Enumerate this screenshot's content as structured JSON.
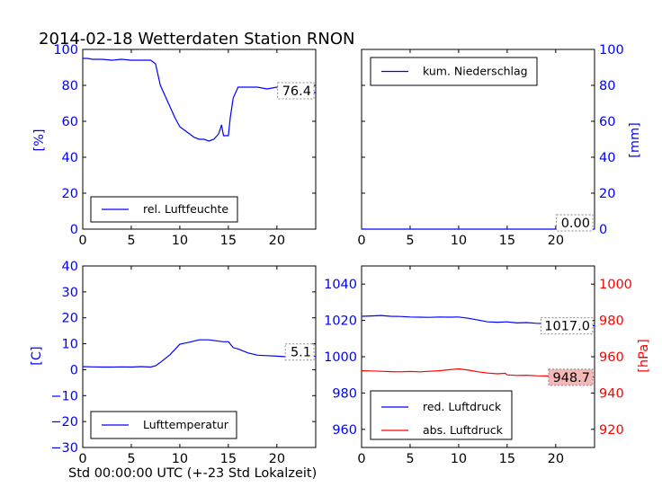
{
  "title": "2014-02-18 Wetterdaten Station RNON",
  "footer": "Std 00:00:00 UTC (+-23 Std Lokalzeit)",
  "colors": {
    "blue": "#0000ff",
    "red": "#ff0000",
    "box_red": "#f4b8b8",
    "axis": "#000000"
  },
  "chart_data": [
    {
      "type": "line",
      "panel": "top-left",
      "ylabel": "[%]",
      "xlim": [
        0,
        24
      ],
      "ylim": [
        0,
        100
      ],
      "xticks": [
        0,
        5,
        10,
        15,
        20
      ],
      "yticks": [
        0,
        20,
        40,
        60,
        80,
        100
      ],
      "legend": "lower-left",
      "series": [
        {
          "name": "rel. Luftfeuchte",
          "color": "#0000ff",
          "x": [
            0,
            0.5,
            1,
            2,
            3,
            4,
            5,
            6,
            7,
            7.5,
            8,
            8.5,
            9,
            9.5,
            10,
            10.5,
            11,
            11.5,
            12,
            12.5,
            13,
            13.5,
            14,
            14.3,
            14.5,
            15,
            15.2,
            15.5,
            16,
            17,
            18,
            19,
            20,
            21,
            22,
            23,
            24
          ],
          "y": [
            95,
            95,
            94.5,
            94.5,
            94,
            94.5,
            94,
            94,
            94,
            92,
            80,
            74,
            68,
            62,
            57,
            55,
            53,
            51,
            50,
            50,
            49,
            50,
            53,
            58,
            52,
            52,
            62,
            73,
            79,
            79,
            79,
            78,
            79,
            78,
            79,
            76,
            76
          ]
        }
      ],
      "last_label": "76.4"
    },
    {
      "type": "line",
      "panel": "top-right",
      "ylabel": "[mm]",
      "xlim": [
        0,
        24
      ],
      "ylim": [
        0,
        100
      ],
      "xticks": [
        0,
        5,
        10,
        15,
        20
      ],
      "yticks": [
        0,
        20,
        40,
        60,
        80,
        100
      ],
      "legend": "upper-left",
      "series": [
        {
          "name": "kum. Niederschlag",
          "color": "#0000ff",
          "x": [
            0,
            24
          ],
          "y": [
            0,
            0
          ]
        }
      ],
      "last_label": "0.00"
    },
    {
      "type": "line",
      "panel": "bottom-left",
      "ylabel": "[C]",
      "xlabel": "Std 00:00:00 UTC (+-23 Std Lokalzeit)",
      "xlim": [
        0,
        24
      ],
      "ylim": [
        -30,
        40
      ],
      "xticks": [
        0,
        5,
        10,
        15,
        20
      ],
      "yticks": [
        -30,
        -20,
        -10,
        0,
        10,
        20,
        30,
        40
      ],
      "legend": "lower-left",
      "series": [
        {
          "name": "Lufttemperatur",
          "color": "#0000ff",
          "x": [
            0,
            1,
            2,
            3,
            4,
            5,
            6,
            7,
            7.5,
            8,
            9,
            10,
            11,
            12,
            13,
            14,
            14.5,
            15,
            15.5,
            16,
            17,
            18,
            19,
            20,
            21,
            22,
            23,
            24
          ],
          "y": [
            1.2,
            1.1,
            1,
            1,
            1.1,
            1,
            1.2,
            1,
            1.5,
            2.8,
            5.8,
            9.8,
            10.6,
            11.5,
            11.5,
            11,
            10.8,
            10.8,
            8.5,
            8,
            6.5,
            5.6,
            5.4,
            5.2,
            5,
            5,
            5.1,
            5.1
          ]
        }
      ],
      "last_label": "5.1"
    },
    {
      "type": "line",
      "panel": "bottom-right",
      "ylabel_right": "[hPa]",
      "xlim": [
        0,
        24
      ],
      "ylim_left": [
        950,
        1050
      ],
      "ylim_right": [
        910,
        1010
      ],
      "xticks": [
        0,
        5,
        10,
        15,
        20
      ],
      "yticks_left": [
        960,
        980,
        1000,
        1020,
        1040
      ],
      "yticks_right": [
        920,
        940,
        960,
        980,
        1000
      ],
      "legend": "lower-left",
      "series": [
        {
          "name": "red. Luftdruck",
          "color": "#0000ff",
          "axis": "left",
          "x": [
            0,
            1,
            2,
            3,
            4,
            5,
            6,
            7,
            8,
            9,
            10,
            11,
            12,
            13,
            14,
            15,
            16,
            17,
            18,
            19,
            20,
            21,
            22,
            23,
            24
          ],
          "y": [
            1022.3,
            1022.5,
            1022.7,
            1022.3,
            1022.2,
            1021.9,
            1021.8,
            1021.7,
            1021.9,
            1021.8,
            1021.9,
            1021.2,
            1020.2,
            1019.2,
            1019.0,
            1019.2,
            1018.6,
            1018.8,
            1018.4,
            1018.2,
            1018.5,
            1018.0,
            1017.5,
            1017.3,
            1017.0
          ]
        },
        {
          "name": "abs. Luftdruck",
          "color": "#ff0000",
          "axis": "right",
          "x": [
            0,
            1,
            2,
            3,
            4,
            5,
            6,
            7,
            8,
            9,
            10,
            11,
            12,
            13,
            14,
            14.8,
            15,
            16,
            17,
            18,
            19,
            20,
            21,
            22,
            23,
            24
          ],
          "y": [
            952.3,
            952.2,
            952.0,
            951.8,
            951.7,
            951.9,
            951.7,
            952.0,
            952.3,
            952.8,
            953.3,
            952.6,
            951.7,
            951.0,
            950.6,
            950.9,
            950.0,
            949.7,
            949.8,
            949.5,
            949.4,
            949.1,
            949.1,
            948.8,
            948.7,
            948.7
          ]
        }
      ],
      "last_labels": [
        "1017.0",
        "948.7"
      ]
    }
  ]
}
